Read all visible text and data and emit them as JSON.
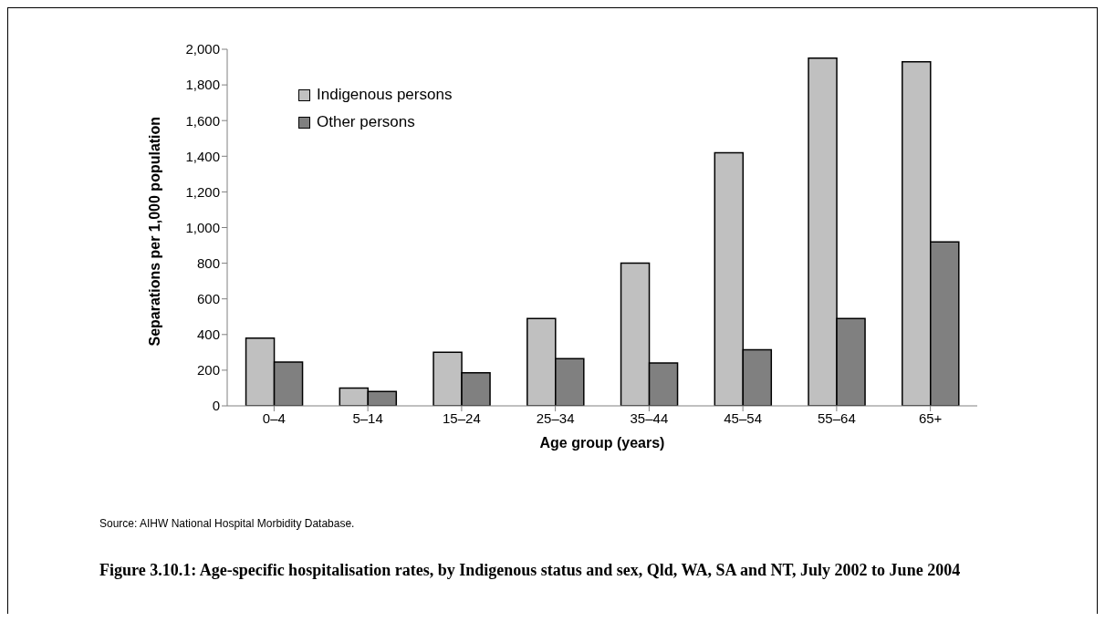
{
  "chart_data": {
    "type": "bar",
    "title": "Figure 3.10.1: Age-specific hospitalisation rates, by Indigenous status and sex, Qld, WA, SA and NT, July 2002 to June 2004",
    "xlabel": "Age group (years)",
    "ylabel": "Separations per 1,000 population",
    "categories": [
      "0–4",
      "5–14",
      "15–24",
      "25–34",
      "35–44",
      "45–54",
      "55–64",
      "65+"
    ],
    "series": [
      {
        "name": "Indigenous persons",
        "color": "#c0c0c0",
        "values": [
          380,
          100,
          300,
          490,
          800,
          1420,
          1950,
          1930
        ]
      },
      {
        "name": "Other persons",
        "color": "#808080",
        "values": [
          245,
          80,
          185,
          265,
          240,
          315,
          490,
          920
        ]
      }
    ],
    "ylim": [
      0,
      2000
    ],
    "yticks": [
      0,
      200,
      400,
      600,
      800,
      {
        "value": 1000,
        "label": "1,000"
      },
      {
        "value": 1200,
        "label": "1,200"
      },
      {
        "value": 1400,
        "label": "1,400"
      },
      {
        "value": 1600,
        "label": "1,600"
      },
      {
        "value": 1800,
        "label": "1,800"
      },
      {
        "value": 2000,
        "label": "2,000"
      }
    ],
    "grid": false,
    "legend": "top left",
    "annotations": [
      "Source: AIHW National Hospital Morbidity Database."
    ]
  }
}
